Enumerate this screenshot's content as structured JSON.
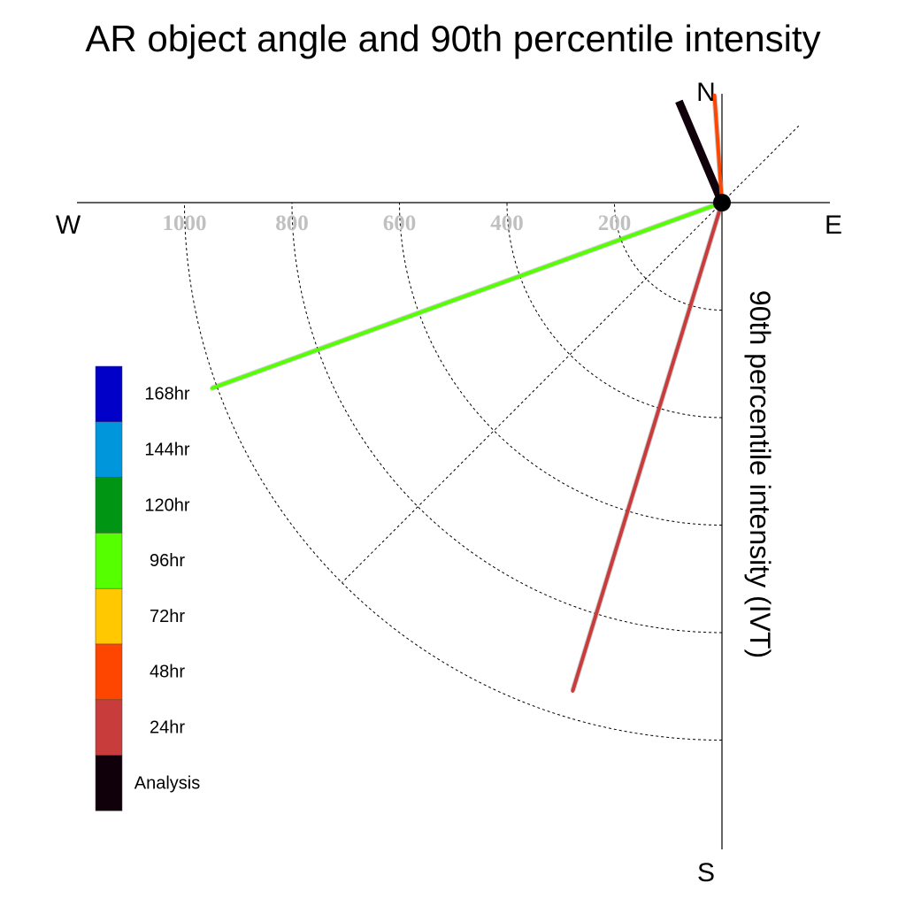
{
  "chart_data": {
    "type": "polar-line",
    "title": "AR object angle and 90th percentile intensity",
    "radial_axis_label": "90th percentile intensity (IVT)",
    "compass": {
      "north": "N",
      "east": "E",
      "south": "S",
      "west": "W"
    },
    "radial_ticks": [
      200,
      400,
      600,
      800,
      1000
    ],
    "radial_tick_labels": [
      "200",
      "400",
      "600",
      "800",
      "1000"
    ],
    "rmax": 1000,
    "grid": true,
    "legend": {
      "placement": "left",
      "entries": [
        {
          "label": "168hr",
          "color": "#0000c8"
        },
        {
          "label": "144hr",
          "color": "#0096dc"
        },
        {
          "label": "120hr",
          "color": "#009614"
        },
        {
          "label": "96hr",
          "color": "#55ff00"
        },
        {
          "label": "72hr",
          "color": "#ffc800"
        },
        {
          "label": "48hr",
          "color": "#ff4600"
        },
        {
          "label": "24hr",
          "color": "#c83c3c"
        },
        {
          "label": "Analysis",
          "color": "#0f000a"
        }
      ]
    },
    "series": [
      {
        "name": "Analysis",
        "angle_deg": 337,
        "intensity": 205,
        "color": "#0f000a"
      },
      {
        "name": "48hr",
        "angle_deg": 356,
        "intensity": 200,
        "color": "#ff4600"
      },
      {
        "name": "96hr",
        "angle_deg": 250,
        "intensity": 1010,
        "color": "#55ff00"
      },
      {
        "name": "24hr",
        "angle_deg": 197,
        "intensity": 950,
        "color": "#c83c3c"
      }
    ]
  }
}
